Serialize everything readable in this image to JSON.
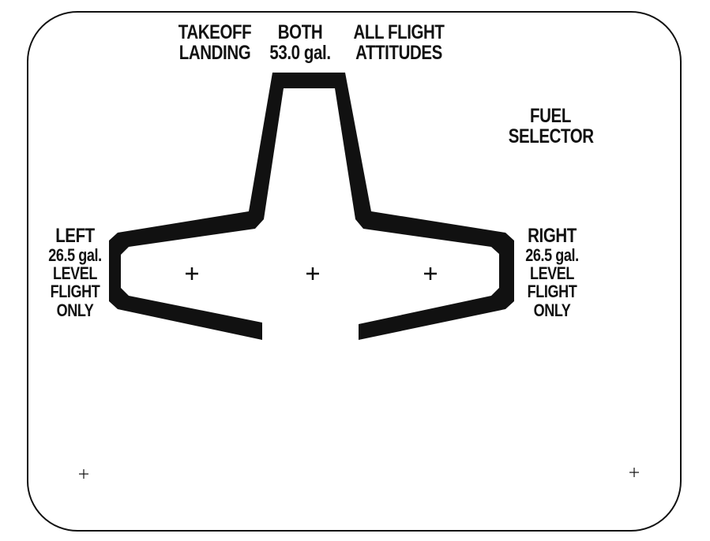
{
  "placard": {
    "title_line1": "FUEL",
    "title_line2": "SELECTOR",
    "top": {
      "takeoff_line1": "TAKEOFF",
      "takeoff_line2": "LANDING",
      "both_line1": "BOTH",
      "both_line2": "53.0 gal.",
      "attitudes_line1": "ALL FLIGHT",
      "attitudes_line2": "ATTITUDES"
    },
    "left": {
      "line1": "LEFT",
      "line2": "26.5 gal.",
      "line3": "LEVEL",
      "line4": "FLIGHT",
      "line5": "ONLY"
    },
    "right": {
      "line1": "RIGHT",
      "line2": "26.5 gal.",
      "line3": "LEVEL",
      "line4": "FLIGHT",
      "line5": "ONLY"
    },
    "colors": {
      "ink": "#111111",
      "background": "#ffffff"
    }
  }
}
